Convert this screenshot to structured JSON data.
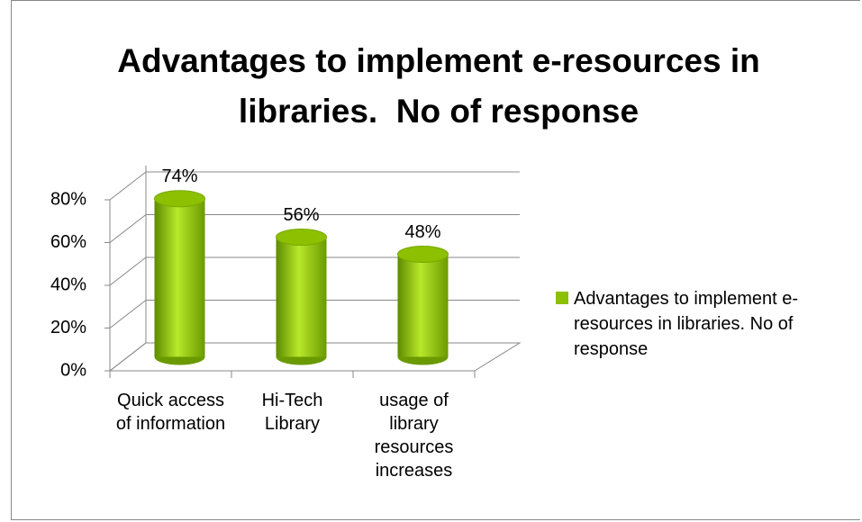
{
  "chart_data": {
    "type": "bar3d",
    "title": "Advantages to implement e-resources in libraries.  No of response",
    "categories": [
      "Quick access of information",
      "Hi-Tech Library",
      "usage of library resources increases"
    ],
    "series": [
      {
        "name": "Advantages to implement e-resources in libraries. No of response",
        "color": "#8cc000",
        "values": [
          74,
          56,
          48
        ],
        "value_labels": [
          "74%",
          "56%",
          "48%"
        ]
      }
    ],
    "ylim": [
      0,
      80
    ],
    "yticks": [
      {
        "value": 0,
        "label": "0%"
      },
      {
        "value": 20,
        "label": "20%"
      },
      {
        "value": 40,
        "label": "40%"
      },
      {
        "value": 60,
        "label": "60%"
      },
      {
        "value": 80,
        "label": "80%"
      }
    ],
    "grid": true,
    "legend": "right"
  }
}
